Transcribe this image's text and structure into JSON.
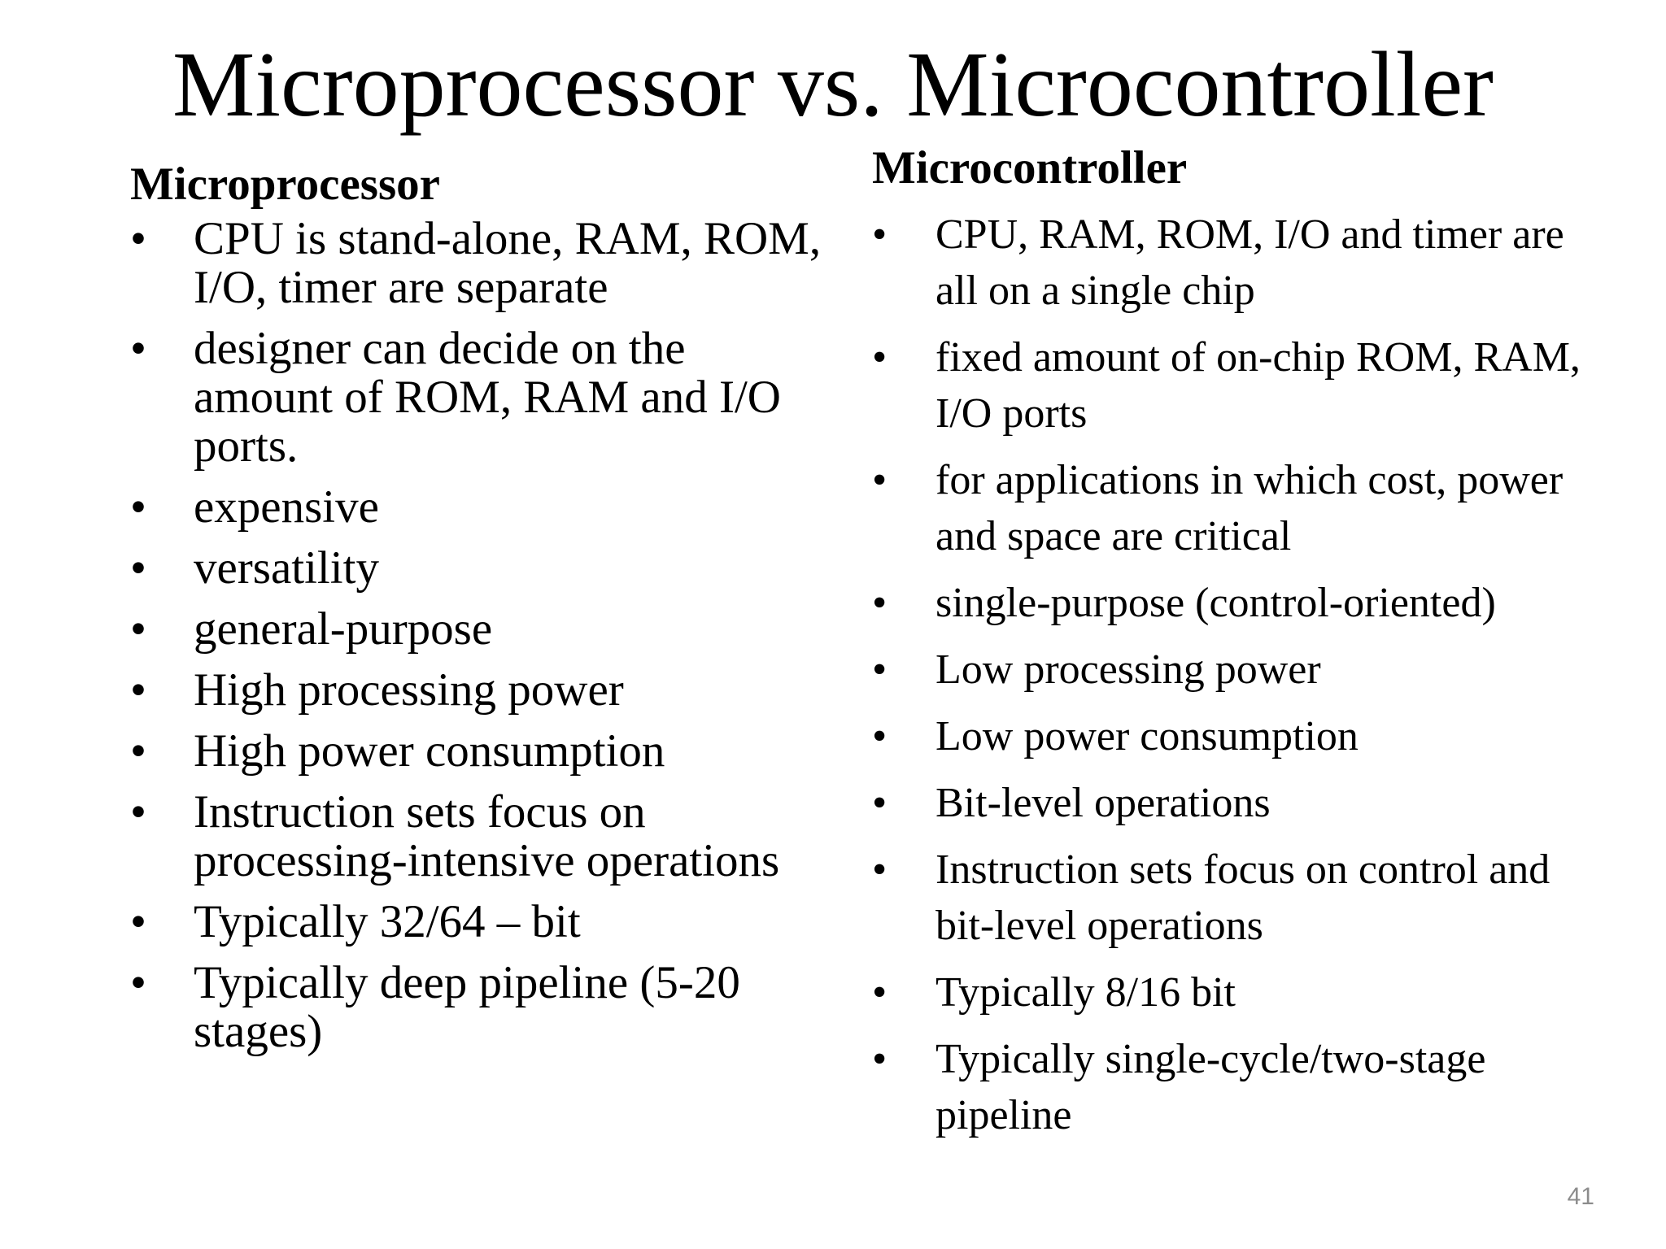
{
  "slide": {
    "title": "Microprocessor vs. Microcontroller",
    "page_number": "41",
    "bullet_symbol": "•"
  },
  "left_column": {
    "heading": "Microprocessor",
    "items": [
      "CPU is stand-alone,  RAM, ROM, I/O, timer are separate",
      "designer can decide on the amount of ROM, RAM and I/O ports.",
      "expensive",
      "versatility",
      "general-purpose",
      "High processing power",
      "High power consumption",
      "Instruction sets focus on processing-intensive operations",
      "Typically 32/64 – bit",
      "Typically deep pipeline (5-20 stages)"
    ]
  },
  "right_column": {
    "heading": "Microcontroller",
    "items": [
      "CPU, RAM, ROM, I/O and timer are all on a single chip",
      "fixed amount of on-chip ROM, RAM, I/O ports",
      "for applications in which cost, power and space are critical",
      "single-purpose (control-oriented)",
      "Low processing power",
      "Low power consumption",
      "Bit-level operations",
      "Instruction sets focus on control and bit-level operations",
      "Typically 8/16 bit",
      "Typically single-cycle/two-stage pipeline"
    ]
  }
}
